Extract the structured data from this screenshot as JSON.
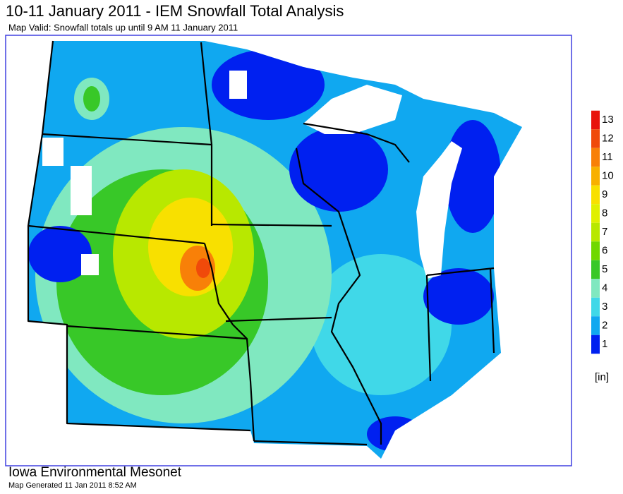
{
  "header": {
    "title": "10-11 January 2011 - IEM Snowfall Total Analysis",
    "subtitle": "Map Valid: Snowfall totals up until 9 AM 11 January 2011"
  },
  "legend": {
    "items": [
      {
        "label": 13,
        "color": "#e8140c"
      },
      {
        "label": 12,
        "color": "#f04a0a"
      },
      {
        "label": 11,
        "color": "#f88008"
      },
      {
        "label": 10,
        "color": "#f8b000"
      },
      {
        "label": 9,
        "color": "#f8e000"
      },
      {
        "label": 8,
        "color": "#e0f000"
      },
      {
        "label": 7,
        "color": "#b8e800"
      },
      {
        "label": 6,
        "color": "#70d800"
      },
      {
        "label": 5,
        "color": "#38c828"
      },
      {
        "label": 4,
        "color": "#80e8c0"
      },
      {
        "label": 3,
        "color": "#40d8e8"
      },
      {
        "label": 2,
        "color": "#10a8f0"
      },
      {
        "label": 1,
        "color": "#0020f0"
      }
    ],
    "unit": "[in]"
  },
  "footer": {
    "organization": "Iowa Environmental Mesonet",
    "generated": "Map Generated 11 Jan 2011 8:52 AM"
  }
}
